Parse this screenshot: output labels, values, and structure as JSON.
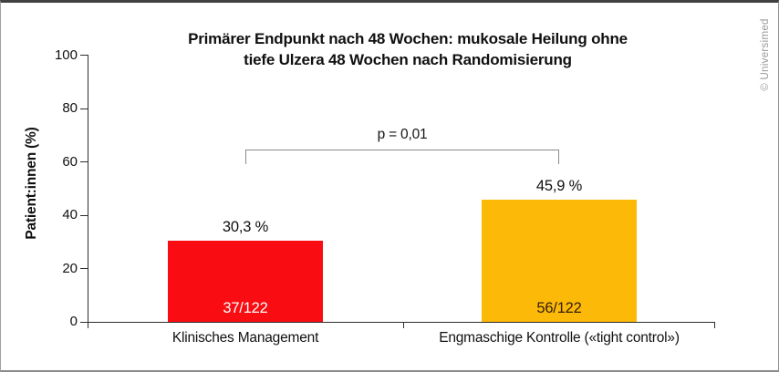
{
  "frame": {
    "credit": "© Universimed"
  },
  "chart_data": {
    "type": "bar",
    "title_line1": "Primärer Endpunkt nach 48 Wochen: mukosale Heilung ohne",
    "title_line2": "tiefe Ulzera 48 Wochen nach Randomisierung",
    "ylabel": "Patient:innen (%)",
    "ylim": [
      0,
      100
    ],
    "yticks": [
      0,
      20,
      40,
      60,
      80,
      100
    ],
    "categories": [
      "Klinisches Management",
      "Engmaschige Kontrolle («tight control»)"
    ],
    "values": [
      30.3,
      45.9
    ],
    "value_labels": [
      "30,3 %",
      "45,9 %"
    ],
    "count_labels": [
      "37/122",
      "56/122"
    ],
    "bar_colors": [
      "#f90d12",
      "#fdb908"
    ],
    "count_label_colors": [
      "#ffffff",
      "#33200a"
    ],
    "significance": {
      "label": "p = 0,01",
      "between": [
        0,
        1
      ]
    },
    "grid": false,
    "legend": false,
    "axis_color": "#2d2d2d"
  }
}
